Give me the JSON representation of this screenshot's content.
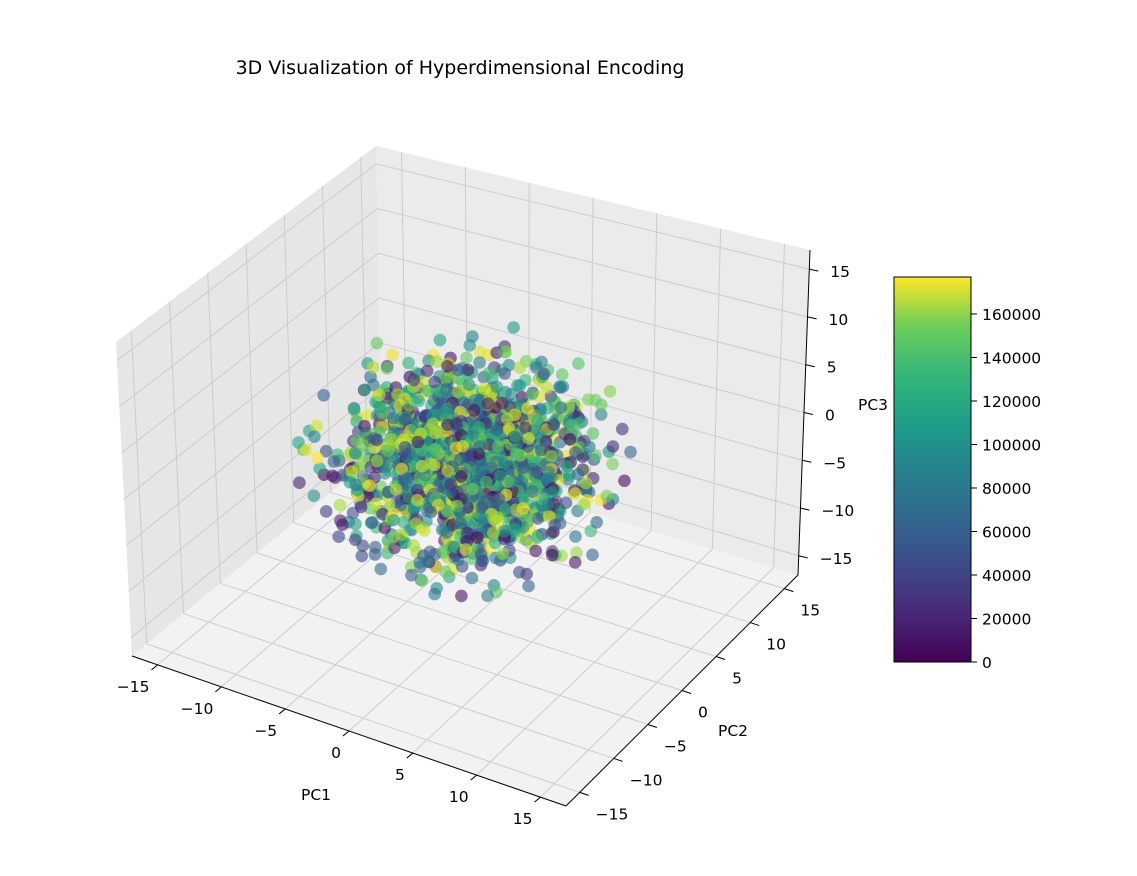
{
  "chart_data": {
    "type": "scatter",
    "projection": "3d",
    "title": "3D Visualization of Hyperdimensional Encoding",
    "xlabel": "PC1",
    "ylabel": "PC2",
    "zlabel": "PC3",
    "xlim": [
      -17,
      17
    ],
    "ylim": [
      -17,
      17
    ],
    "zlim": [
      -17,
      17
    ],
    "x_ticks": [
      "−15",
      "−10",
      "−5",
      "0",
      "5",
      "10",
      "15"
    ],
    "y_ticks": [
      "−15",
      "−10",
      "−5",
      "0",
      "5",
      "10",
      "15"
    ],
    "z_ticks": [
      "−15",
      "−10",
      "−5",
      "0",
      "5",
      "10",
      "15"
    ],
    "grid": true,
    "colormap": "viridis",
    "colorbar": {
      "min": 0,
      "max": 177000,
      "ticks": [
        "0",
        "20000",
        "40000",
        "60000",
        "80000",
        "100000",
        "120000",
        "140000",
        "160000"
      ]
    },
    "point_cloud": {
      "count": 1600,
      "distribution": "gaussian ball centered at origin",
      "center": [
        0,
        0,
        0
      ],
      "radius": 12,
      "value_range": [
        0,
        177000
      ]
    },
    "marker_alpha": 0.6
  }
}
